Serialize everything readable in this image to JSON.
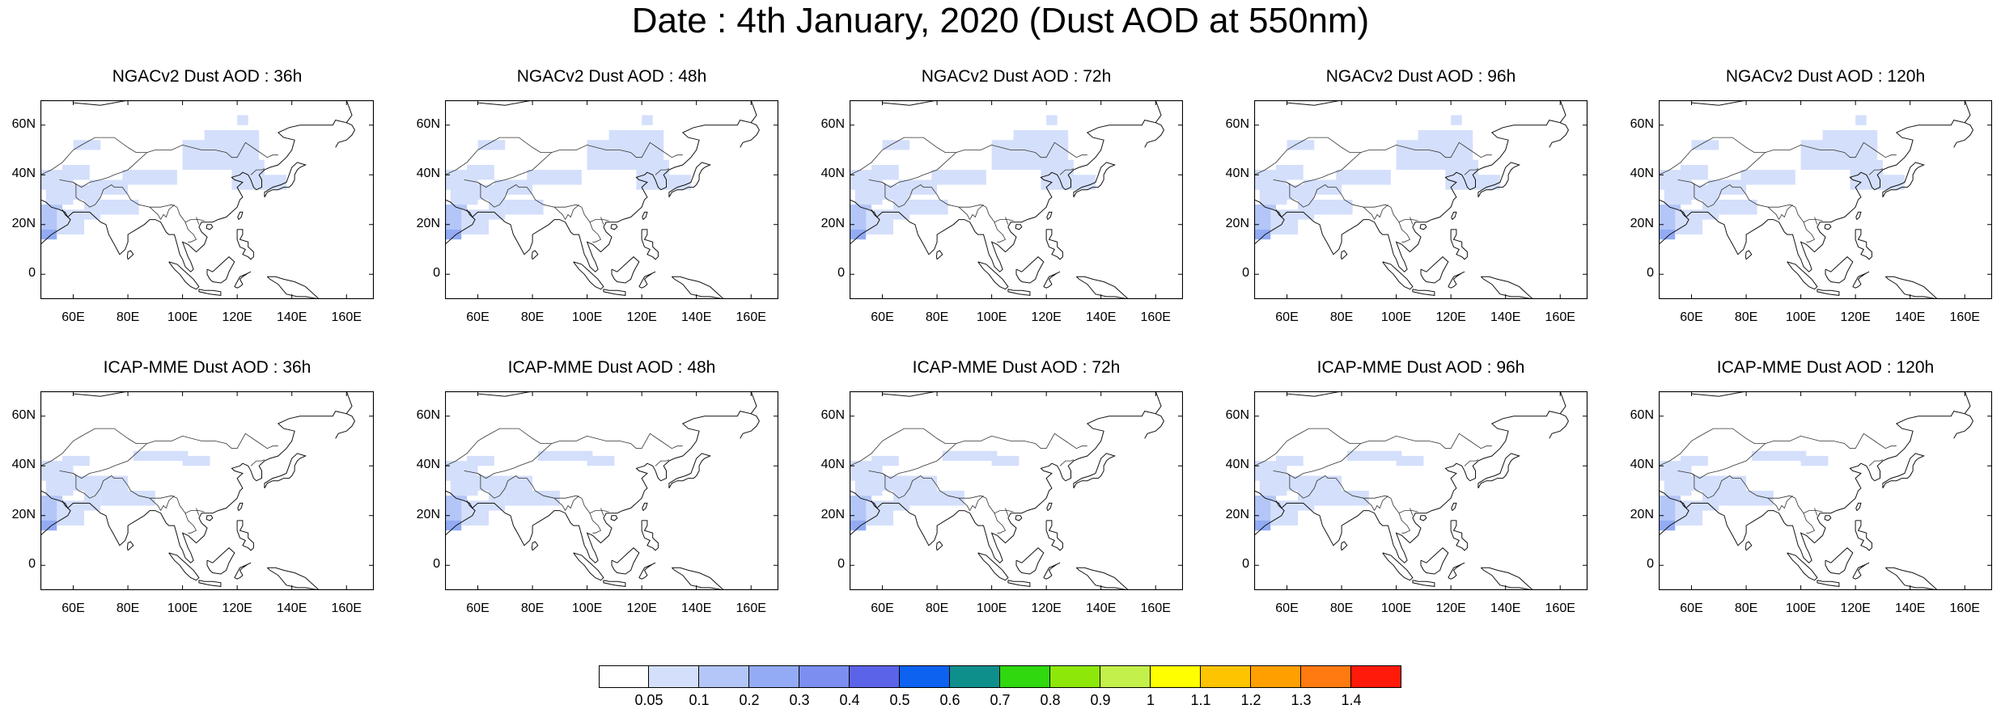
{
  "figure": {
    "title": "Date : 4th January, 2020 (Dust AOD at 550nm)"
  },
  "panels": [
    {
      "title": "NGACv2 Dust AOD : 36h"
    },
    {
      "title": "NGACv2 Dust AOD : 48h"
    },
    {
      "title": "NGACv2 Dust AOD : 72h"
    },
    {
      "title": "NGACv2 Dust AOD : 96h"
    },
    {
      "title": "NGACv2 Dust AOD : 120h"
    },
    {
      "title": "ICAP-MME Dust AOD : 36h"
    },
    {
      "title": "ICAP-MME Dust AOD : 48h"
    },
    {
      "title": "ICAP-MME Dust AOD : 72h"
    },
    {
      "title": "ICAP-MME Dust AOD : 96h"
    },
    {
      "title": "ICAP-MME Dust AOD : 120h"
    }
  ],
  "axes": {
    "lat_ticks": [
      "60N",
      "40N",
      "20N",
      "0"
    ],
    "lon_ticks": [
      "60E",
      "80E",
      "100E",
      "120E",
      "140E",
      "160E"
    ],
    "lat_range": [
      -10,
      70
    ],
    "lon_range": [
      48,
      170
    ]
  },
  "colorbar": {
    "labels": [
      "0.05",
      "0.1",
      "0.2",
      "0.3",
      "0.4",
      "0.5",
      "0.6",
      "0.7",
      "0.8",
      "0.9",
      "1",
      "1.1",
      "1.2",
      "1.3",
      "1.4"
    ],
    "colors": [
      "#ffffff",
      "#d4dffb",
      "#b3c6f7",
      "#92abf4",
      "#7c8ef0",
      "#5b63e8",
      "#0d62f0",
      "#0f8f8c",
      "#2fd80f",
      "#8de80a",
      "#c3f04a",
      "#ffff00",
      "#ffc400",
      "#ffa000",
      "#ff7a10",
      "#ff1a0a"
    ]
  }
}
